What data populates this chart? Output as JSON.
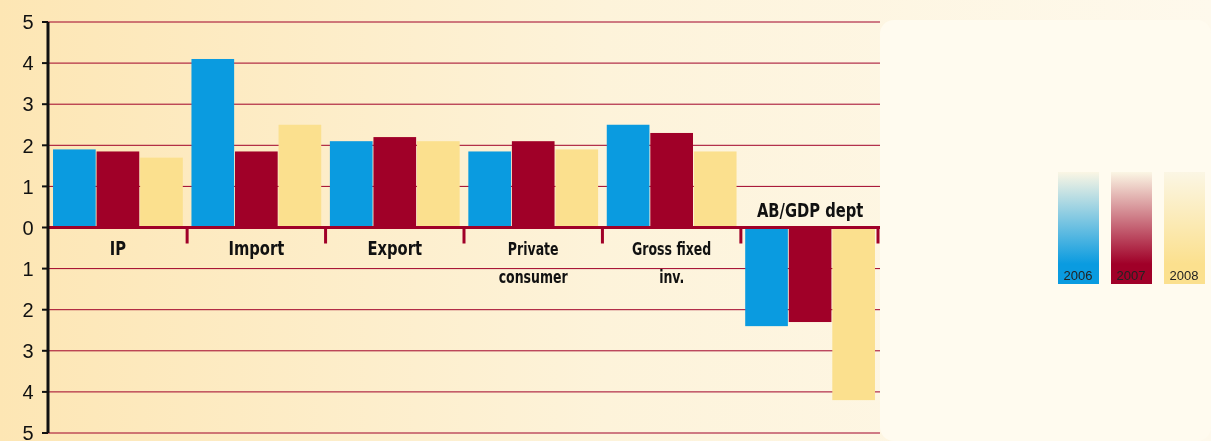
{
  "chart_data": {
    "type": "bar",
    "categories": [
      "IP",
      "Import",
      "Export",
      "Private consumer",
      "Gross fixed inv.",
      "AB/GDP dept"
    ],
    "series": [
      {
        "name": "2006",
        "color": "#0a9be0",
        "values": [
          1.9,
          4.1,
          2.1,
          1.85,
          2.5,
          -2.4
        ]
      },
      {
        "name": "2007",
        "color": "#a00028",
        "values": [
          1.85,
          1.85,
          2.2,
          2.1,
          2.3,
          -2.3
        ]
      },
      {
        "name": "2008",
        "color": "#fbe08e",
        "values": [
          1.7,
          2.5,
          2.1,
          1.9,
          1.85,
          -4.2
        ]
      }
    ],
    "ylim": [
      -5,
      5
    ],
    "yticks": [
      {
        "value": -5,
        "label": "5"
      },
      {
        "value": -4,
        "label": "4"
      },
      {
        "value": -3,
        "label": "3"
      },
      {
        "value": -2,
        "label": "2"
      },
      {
        "value": -1,
        "label": "1"
      },
      0,
      1,
      2,
      3,
      4,
      5
    ],
    "grid": "y",
    "legend": "right"
  }
}
